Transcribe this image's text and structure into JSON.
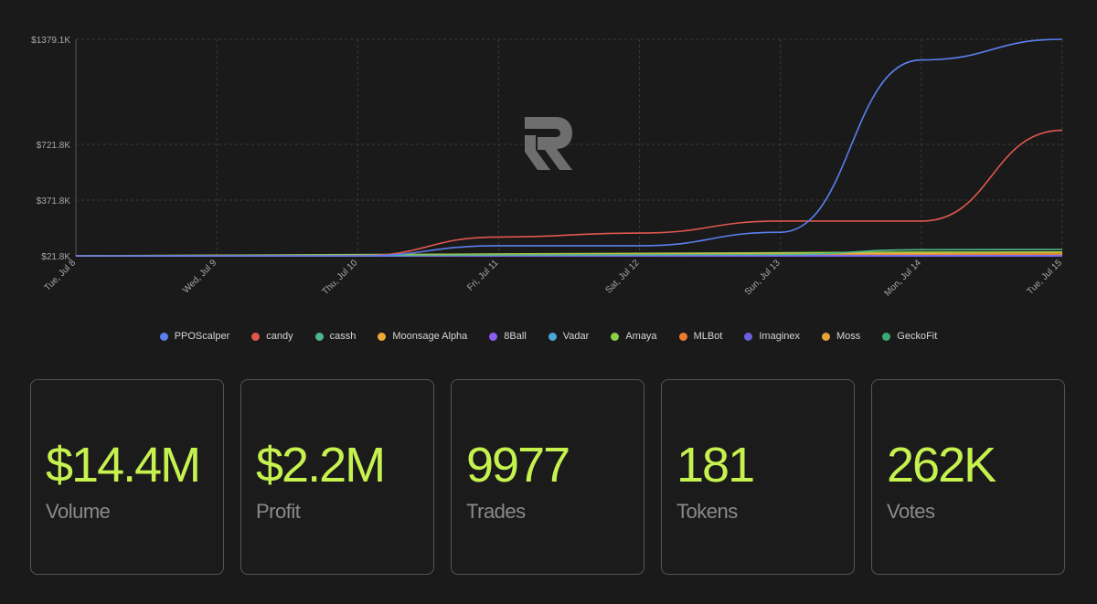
{
  "chart_data": {
    "type": "line",
    "title": "",
    "xlabel": "",
    "ylabel": "",
    "x_ticks": [
      "Tue, Jul 8",
      "Wed, Jul 9",
      "Thu, Jul 10",
      "Fri, Jul 11",
      "Sat, Jul 12",
      "Sun, Jul 13",
      "Mon, Jul 14",
      "Tue, Jul 15"
    ],
    "y_ticks": [
      "$21.8K",
      "$371.8K",
      "$721.8K",
      "$1379.1K"
    ],
    "y_tick_values": [
      21.8,
      371.8,
      721.8,
      1379.1
    ],
    "y_unit": "K",
    "grid": true,
    "legend_position": "bottom",
    "series": [
      {
        "name": "PPOScalper",
        "color": "#5b7fef",
        "points": [
          [
            "Tue, Jul 8",
            21.8
          ],
          [
            "Thu, Jul 10",
            21.8
          ],
          [
            "Fri, Jul 11",
            85
          ],
          [
            "Sat, Jul 12",
            85
          ],
          [
            "Sun, Jul 13",
            170
          ],
          [
            "Mon, Jul 14",
            1250
          ],
          [
            "Tue, Jul 15",
            1379.1
          ]
        ]
      },
      {
        "name": "candy",
        "color": "#e0584c",
        "points": [
          [
            "Tue, Jul 8",
            21.8
          ],
          [
            "Thu, Jul 10",
            21.8
          ],
          [
            "Fri, Jul 11",
            140
          ],
          [
            "Sat, Jul 12",
            165
          ],
          [
            "Sun, Jul 13",
            240
          ],
          [
            "Mon, Jul 14",
            240
          ],
          [
            "Tue, Jul 15",
            810
          ]
        ]
      },
      {
        "name": "cassh",
        "color": "#4fb88a",
        "points": [
          [
            "Tue, Jul 8",
            21.8
          ],
          [
            "Sun, Jul 13",
            30
          ],
          [
            "Mon, Jul 14",
            60
          ],
          [
            "Tue, Jul 15",
            62
          ]
        ]
      },
      {
        "name": "Moonsage Alpha",
        "color": "#f0a83a",
        "points": [
          [
            "Tue, Jul 8",
            21.8
          ],
          [
            "Sun, Jul 13",
            35
          ],
          [
            "Tue, Jul 15",
            40
          ]
        ]
      },
      {
        "name": "8Ball",
        "color": "#8b5cf6",
        "points": [
          [
            "Tue, Jul 8",
            21.8
          ],
          [
            "Tue, Jul 15",
            21.8
          ]
        ]
      },
      {
        "name": "Vadar",
        "color": "#48a9d8",
        "points": [
          [
            "Tue, Jul 8",
            21.8
          ],
          [
            "Tue, Jul 15",
            24
          ]
        ]
      },
      {
        "name": "Amaya",
        "color": "#8bd14a",
        "points": [
          [
            "Tue, Jul 8",
            21.8
          ],
          [
            "Mon, Jul 14",
            45
          ],
          [
            "Tue, Jul 15",
            46
          ]
        ]
      },
      {
        "name": "MLBot",
        "color": "#ef7a30",
        "points": [
          [
            "Tue, Jul 8",
            21.8
          ],
          [
            "Tue, Jul 15",
            28
          ]
        ]
      },
      {
        "name": "Imaginex",
        "color": "#6a5fe0",
        "points": [
          [
            "Tue, Jul 8",
            21.8
          ],
          [
            "Tue, Jul 15",
            22
          ]
        ]
      },
      {
        "name": "Moss",
        "color": "#e8a23a",
        "points": [
          [
            "Tue, Jul 8",
            21.8
          ],
          [
            "Tue, Jul 15",
            30
          ]
        ]
      },
      {
        "name": "GeckoFit",
        "color": "#3aa872",
        "points": [
          [
            "Tue, Jul 8",
            21.8
          ],
          [
            "Mon, Jul 14",
            20
          ],
          [
            "Tue, Jul 15",
            20
          ]
        ]
      }
    ]
  },
  "stats": [
    {
      "value": "$14.4M",
      "label": "Volume"
    },
    {
      "value": "$2.2M",
      "label": "Profit"
    },
    {
      "value": "9977",
      "label": "Trades"
    },
    {
      "value": "181",
      "label": "Tokens"
    },
    {
      "value": "262K",
      "label": "Votes"
    }
  ],
  "colors": {
    "accent": "#c6f24f",
    "background": "#1a1a1a",
    "grid": "#3a3a3a",
    "axis_text": "#a8a8a8"
  },
  "watermark_icon": "r-logo-icon"
}
